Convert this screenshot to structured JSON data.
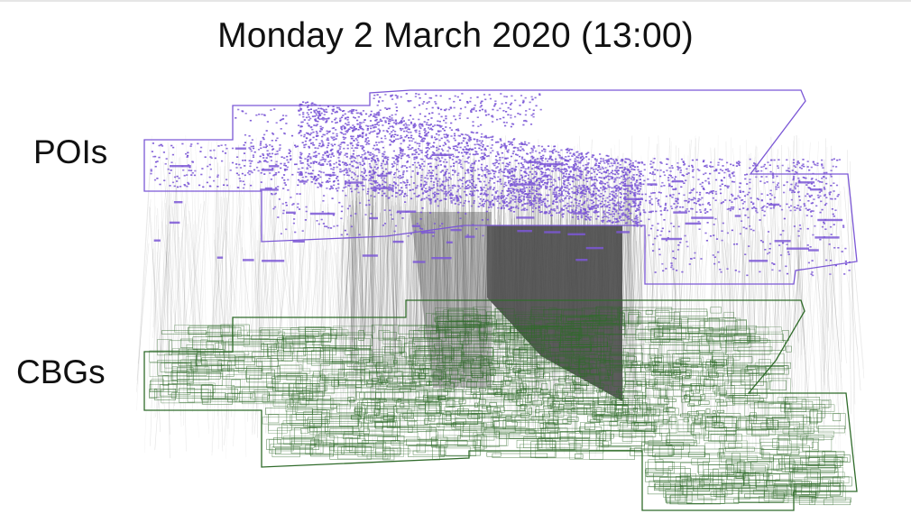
{
  "title": "Monday 2 March 2020 (13:00)",
  "layers": {
    "pois": {
      "label": "POIs",
      "color": "#7b57d6"
    },
    "cbgs": {
      "label": "CBGs",
      "color": "#2f6b2a"
    }
  },
  "link_color": "#555555"
}
